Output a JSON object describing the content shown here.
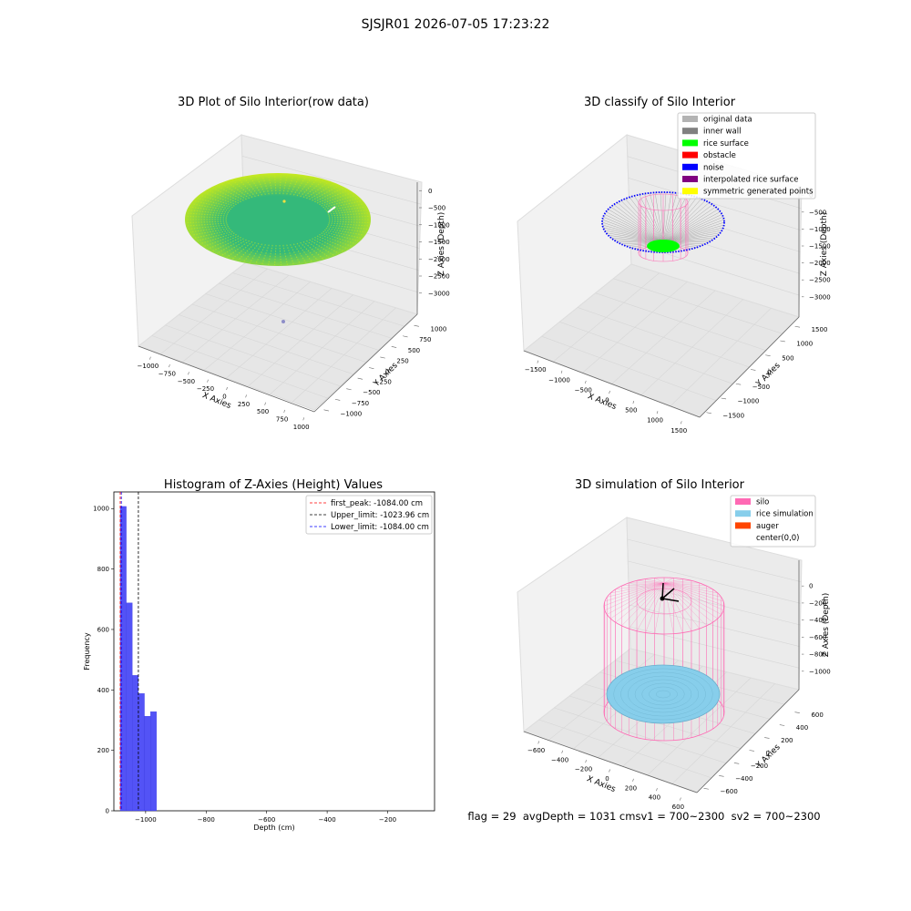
{
  "figure_title": "SJSJR01 2026-07-05 17:23:22",
  "footer_text": "flag = 29  avgDepth = 1031 cmsv1 = 700~2300  sv2 = 700~2300",
  "colors": {
    "raw_inner": "#34b97a",
    "raw_outer": "#c8ea1c",
    "original": "#b3b3b3",
    "inner_wall": "#808080",
    "rice_surface": "#00ff00",
    "obstacle": "#ff0000",
    "noise": "#0000ff",
    "interpolated": "#800080",
    "symmetric": "#ffff00",
    "hist_bar": "#4a4af5",
    "silo": "#ff69b4",
    "rice_sim": "#87ceeb",
    "auger": "#ff4500"
  },
  "chart_data": [
    {
      "type": "scatter",
      "projection": "3d",
      "title": "3D Plot of Silo Interior(row data)",
      "xlabel": "X Axies",
      "ylabel": "Y Axies",
      "zlabel": "Z Axies (Depth)",
      "xticks": [
        "−1000",
        "−750",
        "−500",
        "−250",
        "0",
        "250",
        "500",
        "750",
        "1000"
      ],
      "yticks": [
        "−1000",
        "−750",
        "−500",
        "−250",
        "0",
        "250",
        "500",
        "750",
        "1000"
      ],
      "zticks": [
        "0",
        "−500",
        "−1000",
        "−1500",
        "−2000",
        "−2500",
        "−3000"
      ],
      "xlim": [
        -1000,
        1000
      ],
      "ylim": [
        -1000,
        1000
      ],
      "zlim": [
        -3200,
        100
      ],
      "description_points": "bowl-shaped point cloud of ~900 mm radius, colored by depth"
    },
    {
      "type": "scatter",
      "projection": "3d",
      "title": "3D classify of Silo Interior",
      "xlabel": "X Axies",
      "ylabel": "Y Axies",
      "zlabel": "Z Axies (Depth)",
      "xticks": [
        "−1500",
        "−1000",
        "−500",
        "0",
        "500",
        "1000",
        "1500"
      ],
      "yticks": [
        "−1500",
        "−1000",
        "−500",
        "0",
        "500",
        "1000",
        "1500"
      ],
      "zticks": [
        "0",
        "−500",
        "−1000",
        "−1500",
        "−2000",
        "−2500",
        "−3000"
      ],
      "legend": [
        "original data",
        "inner wall",
        "rice surface",
        "obstacle",
        "noise",
        "interpolated rice surface",
        "symmetric generated points"
      ],
      "legend_position": "upper right"
    },
    {
      "type": "bar",
      "title": "Histogram of Z-Axies (Height) Values",
      "xlabel": "Depth (cm)",
      "ylabel": "Frequency",
      "xticks": [
        "−1000",
        "−800",
        "−600",
        "−400",
        "−200"
      ],
      "xtick_values": [
        -1000,
        -800,
        -600,
        -400,
        -200
      ],
      "yticks": [
        "0",
        "200",
        "400",
        "600",
        "800",
        "1000"
      ],
      "ytick_values": [
        0,
        200,
        400,
        600,
        800,
        1000
      ],
      "xlim": [
        -1105,
        -45
      ],
      "ylim": [
        0,
        1055
      ],
      "bins": [
        {
          "x0": -1084,
          "x1": -1064,
          "value": 1007
        },
        {
          "x0": -1064,
          "x1": -1044,
          "value": 688
        },
        {
          "x0": -1044,
          "x1": -1024,
          "value": 448
        },
        {
          "x0": -1024,
          "x1": -1004,
          "value": 388
        },
        {
          "x0": -1004,
          "x1": -984,
          "value": 313
        },
        {
          "x0": -984,
          "x1": -964,
          "value": 328
        }
      ],
      "vlines": [
        {
          "label": "first_peak: -1084.00 cm",
          "x": -1084.0,
          "color": "#ff0000"
        },
        {
          "label": "Upper_limit: -1023.96 cm",
          "x": -1023.96,
          "color": "#000000"
        },
        {
          "label": "Lower_limit: -1084.00 cm",
          "x": -1084.0,
          "color": "#0000ff"
        }
      ],
      "legend_position": "upper right"
    },
    {
      "type": "scatter",
      "projection": "3d",
      "title": "3D simulation of Silo Interior",
      "xlabel": "X Axies",
      "ylabel": "Y Axies",
      "zlabel": "Z Axies (Depth)",
      "xticks": [
        "−600",
        "−400",
        "−200",
        "0",
        "200",
        "400",
        "600"
      ],
      "yticks": [
        "−600",
        "−400",
        "−200",
        "0",
        "200",
        "400",
        "600"
      ],
      "zticks": [
        "0",
        "−200",
        "−400",
        "−600",
        "−800",
        "−1000"
      ],
      "legend": [
        "silo",
        "rice simulation",
        "auger",
        "center(0,0)"
      ],
      "legend_position": "upper right"
    }
  ]
}
